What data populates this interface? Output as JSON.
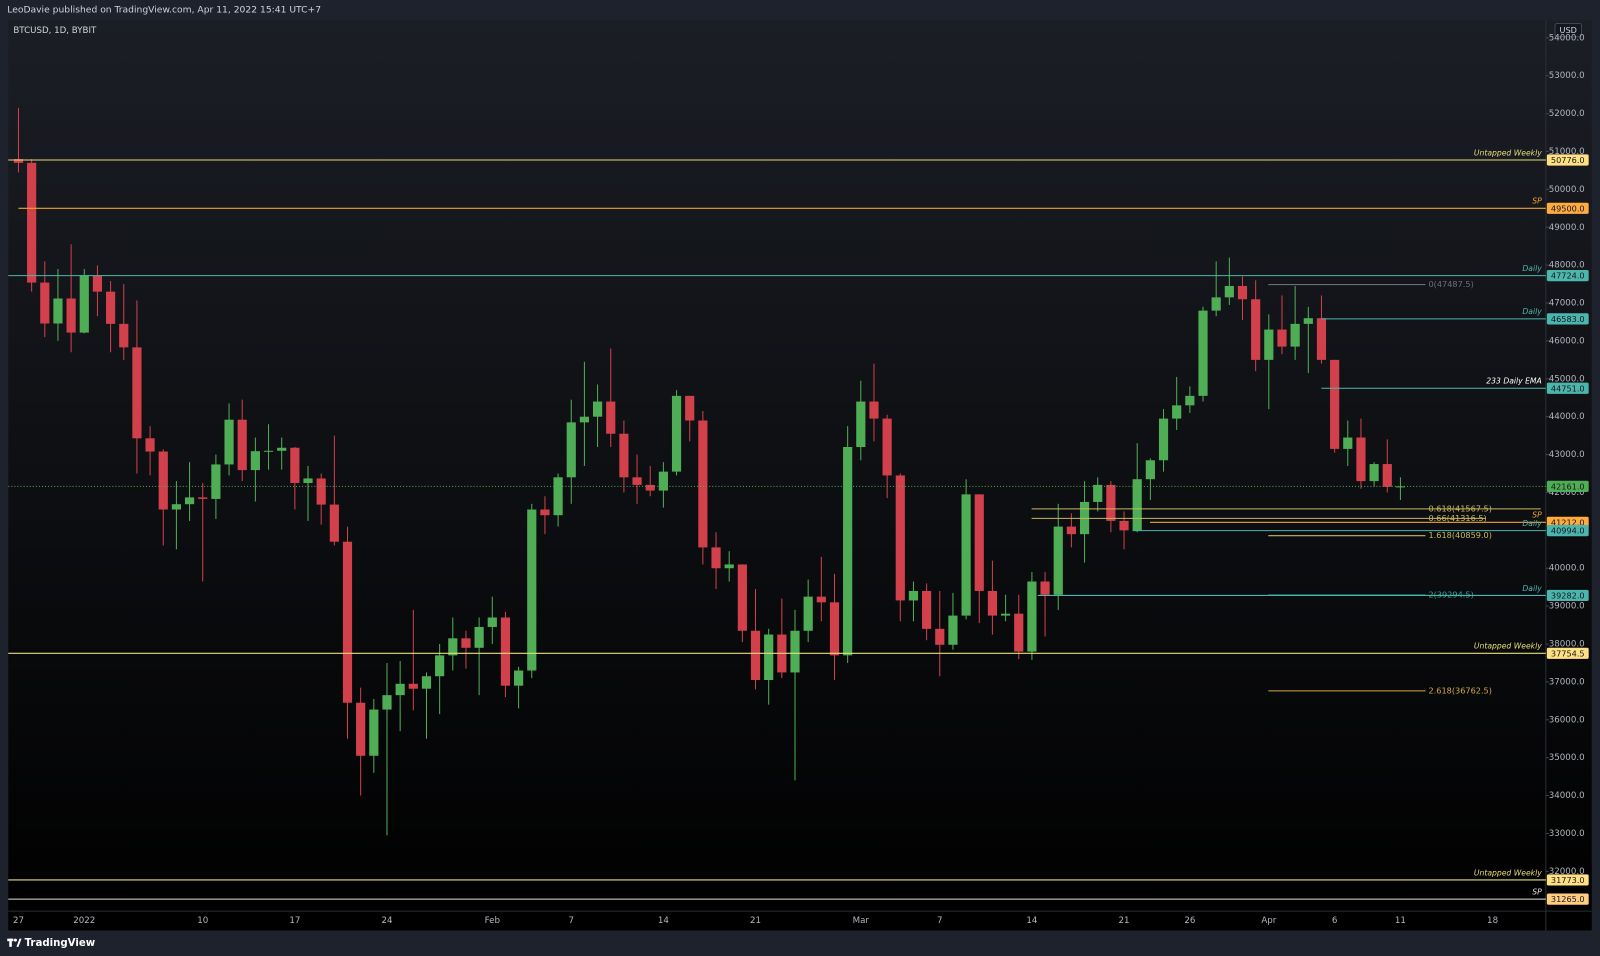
{
  "header": "LeoDavie published on TradingView.com, Apr 11, 2022 15:41 UTC+7",
  "footer": "TradingView",
  "chart_data": {
    "type": "candlestick",
    "title": "BTCUSD, 1D, BYBIT",
    "currency": "USD",
    "up_color": "#4fae55",
    "down_color": "#d2404c",
    "categories": [
      "27",
      null,
      null,
      null,
      null,
      "2022",
      null,
      null,
      null,
      null,
      null,
      null,
      null,
      null,
      "10",
      null,
      null,
      null,
      null,
      null,
      null,
      "17",
      null,
      null,
      null,
      null,
      null,
      null,
      "24",
      null,
      null,
      null,
      null,
      null,
      null,
      null,
      "Feb",
      null,
      null,
      null,
      null,
      null,
      "7",
      null,
      null,
      null,
      null,
      null,
      null,
      "14",
      null,
      null,
      null,
      null,
      null,
      null,
      "21",
      null,
      null,
      null,
      null,
      null,
      null,
      null,
      "Mar",
      null,
      null,
      null,
      null,
      null,
      "7",
      null,
      null,
      null,
      null,
      null,
      null,
      "14",
      null,
      null,
      null,
      null,
      null,
      null,
      "21",
      null,
      null,
      null,
      null,
      "26",
      null,
      null,
      null,
      null,
      null,
      "Apr",
      null,
      null,
      null,
      null,
      "6",
      null,
      null,
      null,
      null,
      "11",
      null,
      null,
      null,
      null,
      null,
      null,
      "18",
      null,
      null,
      null,
      null
    ],
    "open": [
      50800,
      50700,
      47540,
      46460,
      47120,
      46220,
      47730,
      47300,
      46450,
      45830,
      43430,
      43080,
      41550,
      41690,
      41870,
      41830,
      42740,
      43920,
      42590,
      43090,
      43100,
      43180,
      42250,
      42370,
      41680,
      40700,
      36450,
      35050,
      36270,
      36650,
      36950,
      36820,
      37150,
      37700,
      38150,
      37900,
      38450,
      38700,
      36900,
      37300,
      41550,
      41400,
      42400,
      43850,
      44000,
      44400,
      43550,
      42400,
      42200,
      42050,
      42550,
      44550,
      43900,
      40550,
      40000,
      40100,
      38350,
      37050,
      38250,
      37250,
      38350,
      39250,
      39100,
      37700,
      43200,
      44400,
      43950,
      42450,
      39150,
      39400,
      38400,
      37980,
      38750,
      41950,
      39400,
      38750,
      38800,
      37800,
      39650,
      39300,
      41100,
      40900,
      41750,
      42200,
      41250,
      41000,
      42350,
      42850,
      43950,
      44300,
      44550,
      46800,
      47150,
      47450,
      47100,
      45500,
      46300,
      45850,
      46450,
      46600,
      45500,
      43150,
      43450,
      42300,
      42750,
      42150,
      null,
      null,
      null,
      null,
      null,
      null,
      null,
      null,
      null,
      null,
      null
    ],
    "high": [
      52150,
      50800,
      48100,
      47900,
      48550,
      47900,
      47990,
      47580,
      47500,
      47070,
      43750,
      43140,
      42300,
      42800,
      42250,
      43000,
      44350,
      44450,
      43450,
      43800,
      43450,
      43200,
      42700,
      42500,
      43500,
      41100,
      36850,
      36550,
      37500,
      37550,
      38900,
      37250,
      38000,
      38700,
      38350,
      38700,
      39250,
      38850,
      37400,
      41700,
      41900,
      42500,
      44450,
      45450,
      44850,
      45800,
      43900,
      43000,
      42700,
      42800,
      44700,
      44550,
      44150,
      40950,
      40450,
      40100,
      39450,
      38400,
      39200,
      38900,
      39700,
      40300,
      39850,
      43750,
      44950,
      45400,
      44050,
      42500,
      39650,
      39600,
      39400,
      39350,
      42350,
      41950,
      40200,
      39300,
      39300,
      39900,
      39900,
      41700,
      41450,
      42300,
      42400,
      42300,
      41500,
      43300,
      42900,
      44200,
      45050,
      44800,
      46900,
      48100,
      48200,
      47700,
      47600,
      46700,
      47200,
      47450,
      46900,
      47200,
      45500,
      43900,
      43950,
      42800,
      43400,
      42400,
      null,
      null,
      null,
      null,
      null,
      null,
      null,
      null,
      null,
      null,
      null
    ],
    "low": [
      50450,
      47300,
      46100,
      46000,
      45700,
      46200,
      46650,
      45700,
      45500,
      42500,
      42450,
      40600,
      40500,
      41250,
      39650,
      41300,
      42450,
      42300,
      41760,
      42600,
      42600,
      41550,
      41250,
      41150,
      40600,
      35500,
      34000,
      34600,
      32950,
      35700,
      36250,
      35500,
      36150,
      37300,
      37350,
      36650,
      38000,
      36600,
      36300,
      37100,
      40900,
      41100,
      41700,
      42700,
      43200,
      43200,
      42000,
      41700,
      41900,
      41600,
      42450,
      43350,
      40100,
      39450,
      39650,
      38050,
      36800,
      36400,
      37100,
      34400,
      38050,
      38600,
      37050,
      37500,
      42850,
      43350,
      41850,
      38600,
      38600,
      38100,
      37150,
      37850,
      38650,
      38550,
      38250,
      38600,
      37600,
      37580,
      38200,
      38900,
      40550,
      40150,
      41500,
      40950,
      40500,
      40950,
      41800,
      42550,
      43650,
      44100,
      44400,
      46650,
      46950,
      46550,
      45200,
      44200,
      45650,
      45500,
      45150,
      45400,
      43050,
      42700,
      42100,
      42150,
      42000,
      41800,
      null,
      null,
      null,
      null,
      null,
      null,
      null,
      null,
      null,
      null,
      null
    ],
    "close": [
      50700,
      47540,
      46460,
      47120,
      46220,
      47730,
      47300,
      46450,
      45830,
      43430,
      43080,
      41550,
      41690,
      41870,
      41830,
      42740,
      43920,
      42590,
      43090,
      43100,
      43180,
      42250,
      42370,
      41680,
      40700,
      36450,
      35050,
      36270,
      36650,
      36950,
      36820,
      37150,
      37700,
      38150,
      37900,
      38450,
      38700,
      36900,
      37300,
      41550,
      41400,
      42400,
      43850,
      44000,
      44400,
      43550,
      42400,
      42200,
      42050,
      42550,
      44550,
      43900,
      40550,
      40000,
      40100,
      38350,
      37050,
      38250,
      37250,
      38350,
      39250,
      39100,
      37700,
      43200,
      44400,
      43950,
      42450,
      39150,
      39400,
      38400,
      37980,
      38750,
      41950,
      39400,
      38750,
      38800,
      37800,
      39650,
      39300,
      41100,
      40900,
      41750,
      42200,
      41250,
      41000,
      42350,
      42850,
      43950,
      44300,
      44550,
      46800,
      47150,
      47450,
      47100,
      45500,
      46300,
      45850,
      46450,
      46600,
      45500,
      43150,
      43450,
      42300,
      42750,
      42150,
      42161,
      null,
      null,
      null,
      null,
      null,
      null,
      null,
      null,
      null,
      null,
      null
    ],
    "ylim": [
      30950,
      54460
    ],
    "yticks": [
      {
        "value": 32000,
        "label": "32000.0"
      },
      {
        "value": 33000,
        "label": "33000.0"
      },
      {
        "value": 34000,
        "label": "34000.0"
      },
      {
        "value": 35000,
        "label": "35000.0"
      },
      {
        "value": 36000,
        "label": "36000.0"
      },
      {
        "value": 37000,
        "label": "37000.0"
      },
      {
        "value": 38000,
        "label": "38000.0"
      },
      {
        "value": 39000,
        "label": "39000.0"
      },
      {
        "value": 40000,
        "label": "40000.0"
      },
      {
        "value": 41000,
        "label": "41000.0"
      },
      {
        "value": 42000,
        "label": "42000.0"
      },
      {
        "value": 43000,
        "label": "43000.0"
      },
      {
        "value": 44000,
        "label": "44000.0"
      },
      {
        "value": 45000,
        "label": "45000.0"
      },
      {
        "value": 46000,
        "label": "46000.0"
      },
      {
        "value": 47000,
        "label": "47000.0"
      },
      {
        "value": 48000,
        "label": "48000.0"
      },
      {
        "value": 49000,
        "label": "49000.0"
      },
      {
        "value": 50000,
        "label": "50000.0"
      },
      {
        "value": 51000,
        "label": "51000.0"
      },
      {
        "value": 52000,
        "label": "52000.0"
      },
      {
        "value": 53000,
        "label": "53000.0"
      },
      {
        "value": 54000,
        "label": "54000.0"
      }
    ],
    "levels": [
      {
        "name": "Untapped Weekly",
        "value": 50776,
        "label": "50776.0",
        "color": "#e8dc7a",
        "label_color": "#ffe083"
      },
      {
        "name": "SP",
        "value": 49500,
        "label": "49500.0",
        "color": "#f0a432",
        "label_color": "#ffab40"
      },
      {
        "name": "Daily",
        "value": 47724,
        "label": "47724.0",
        "color": "#4db6ac",
        "label_color": "#4db6ac"
      },
      {
        "name": "Daily",
        "value": 46583,
        "label": "46583.0",
        "color": "#4db6ac",
        "label_color": "#4db6ac"
      },
      {
        "name": "233 Daily EMA",
        "value": 44751,
        "label": "44751.0",
        "color": "#4db6ac",
        "label_color": "#4db6ac",
        "name_color": "#ffffff"
      },
      {
        "value": 42161,
        "label": "42161.0",
        "color": "#4fae55",
        "label_color": "#4fae55",
        "style": "dotted"
      },
      {
        "name": "SP",
        "value": 41212,
        "label": "41212.0",
        "color": "#f0a432",
        "label_color": "#ffab40"
      },
      {
        "name": "Daily",
        "value": 40994,
        "label": "40994.0",
        "color": "#4db6ac",
        "label_color": "#4db6ac"
      },
      {
        "name": "Daily",
        "value": 39282,
        "label": "39282.0",
        "color": "#4db6ac",
        "label_color": "#4db6ac"
      },
      {
        "name": "Untapped Weekly",
        "value": 37754.5,
        "label": "37754.5",
        "color": "#e8dc7a",
        "label_color": "#ffe083"
      },
      {
        "name": "Untapped Weekly",
        "value": 31773,
        "label": "31773.0",
        "color": "#e8dc7a",
        "label_color": "#ffe083"
      },
      {
        "name": "SP",
        "value": 31265,
        "label": "31265.0",
        "color": "#e0e0e0",
        "label_color": "#ffcc80"
      }
    ],
    "fib": [
      {
        "label": "0(47487.5)",
        "value": 47487.5,
        "color": "#6b6f7a"
      },
      {
        "label": "0.618(41567.5)",
        "value": 41567.5,
        "color": "#c8b85a"
      },
      {
        "label": "0.66(41316.5)",
        "value": 41316.5,
        "color": "#c8b85a"
      },
      {
        "label": "1.618(40859.0)",
        "value": 40859,
        "color": "#c8b85a"
      },
      {
        "label": "2(39294.5)",
        "value": 39294.5,
        "color": "#2aa79b"
      },
      {
        "label": "2.618(36762.5)",
        "value": 36762.5,
        "color": "#d4a84a"
      }
    ]
  }
}
